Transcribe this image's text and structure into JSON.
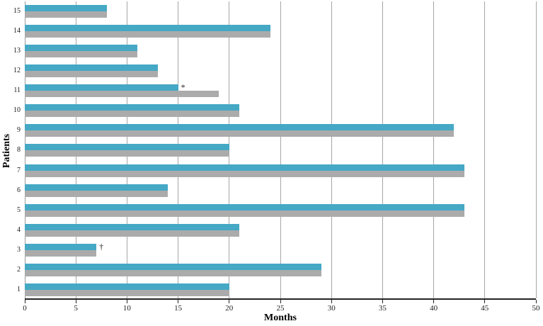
{
  "chart_data": {
    "type": "bar",
    "orientation": "horizontal",
    "title": "",
    "xlabel": "Months",
    "ylabel": "Patients",
    "xlim": [
      0,
      50
    ],
    "xticks": [
      0,
      5,
      10,
      15,
      20,
      25,
      30,
      35,
      40,
      45,
      50
    ],
    "xtick_labels": [
      "0",
      "5",
      "10",
      "15",
      "20",
      "25",
      "30",
      "35",
      "40",
      "45",
      "50"
    ],
    "grid": "vertical",
    "legend": "none",
    "categories": [
      "15",
      "14",
      "13",
      "12",
      "11",
      "10",
      "9",
      "8",
      "7",
      "6",
      "5",
      "4",
      "3",
      "2",
      "1"
    ],
    "series": [
      {
        "id": "top-blue",
        "color": "#45a8c5",
        "values": [
          8,
          24,
          11,
          13,
          15,
          21,
          42,
          20,
          43,
          14,
          43,
          21,
          7,
          29,
          20
        ]
      },
      {
        "id": "bottom-gray",
        "color": "#ababab",
        "values": [
          8,
          24,
          11,
          13,
          19,
          21,
          42,
          20,
          43,
          14,
          43,
          21,
          7,
          29,
          20
        ]
      }
    ],
    "annotations": [
      {
        "category": "11",
        "symbol": "*",
        "x": 15,
        "attached_to": "top-blue"
      },
      {
        "category": "3",
        "symbol": "†",
        "x": 7,
        "attached_to": "top-blue"
      }
    ],
    "colors": {
      "bar_blue": "#45a8c5",
      "bar_gray": "#ababab",
      "gridline": "#a6a6a6",
      "axis": "#262626",
      "text": "#1a1a1a"
    }
  }
}
